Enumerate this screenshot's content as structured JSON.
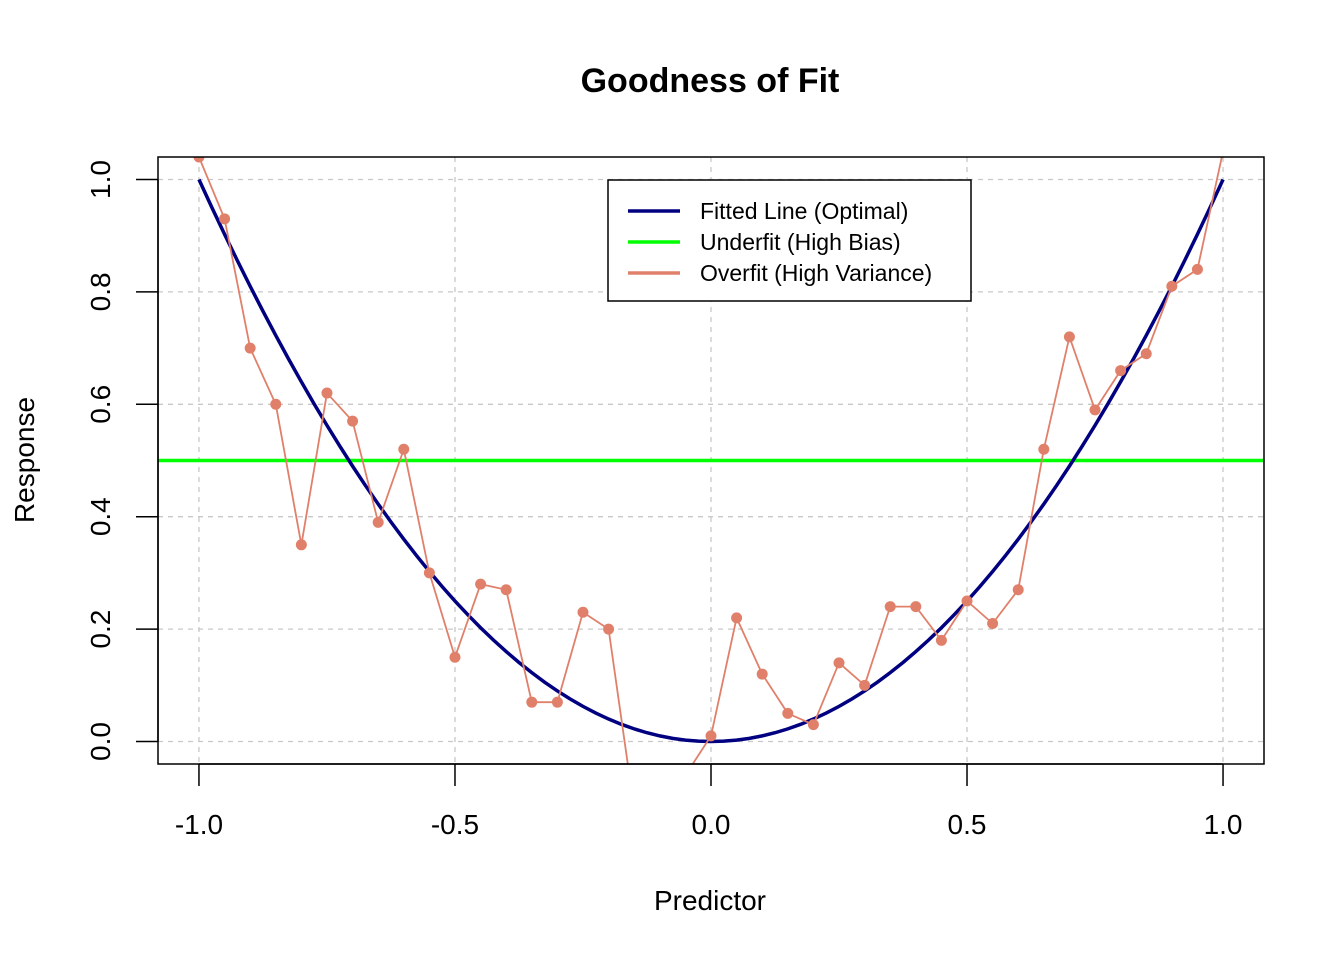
{
  "chart_data": {
    "type": "line",
    "title": "Goodness of Fit",
    "xlabel": "Predictor",
    "ylabel": "Response",
    "xlim": [
      -1.08,
      1.08
    ],
    "ylim": [
      -0.04,
      1.04
    ],
    "xticks": [
      -1.0,
      -0.5,
      0.0,
      0.5,
      1.0
    ],
    "xtick_labels": [
      "-1.0",
      "-0.5",
      "0.0",
      "0.5",
      "1.0"
    ],
    "yticks": [
      0.0,
      0.2,
      0.4,
      0.6,
      0.8,
      1.0
    ],
    "ytick_labels": [
      "0.0",
      "0.2",
      "0.4",
      "0.6",
      "0.8",
      "1.0"
    ],
    "grid": true,
    "legend_position": "top-center",
    "series": [
      {
        "name": "Fitted Line (Optimal)",
        "color": "#000080",
        "style": "line",
        "function": "x^2"
      },
      {
        "name": "Underfit (High Bias)",
        "color": "#00ff00",
        "style": "hline",
        "y_constant": 0.5
      },
      {
        "name": "Overfit (High Variance)",
        "color": "#e0806a",
        "style": "line+points",
        "x": [
          -1.0,
          -0.95,
          -0.9,
          -0.85,
          -0.8,
          -0.75,
          -0.7,
          -0.65,
          -0.6,
          -0.55,
          -0.5,
          -0.45,
          -0.4,
          -0.35,
          -0.3,
          -0.25,
          -0.2,
          -0.15,
          -0.1,
          -0.05,
          0.0,
          0.05,
          0.1,
          0.15,
          0.2,
          0.25,
          0.3,
          0.35,
          0.4,
          0.45,
          0.5,
          0.55,
          0.6,
          0.65,
          0.7,
          0.75,
          0.8,
          0.85,
          0.9,
          0.95,
          1.0
        ],
        "y": [
          1.04,
          0.93,
          0.7,
          0.6,
          0.35,
          0.62,
          0.57,
          0.39,
          0.52,
          0.3,
          0.15,
          0.28,
          0.27,
          0.07,
          0.07,
          0.23,
          0.2,
          -0.12,
          -0.15,
          -0.06,
          0.01,
          0.22,
          0.12,
          0.05,
          0.03,
          0.14,
          0.1,
          0.24,
          0.24,
          0.18,
          0.25,
          0.21,
          0.27,
          0.52,
          0.72,
          0.59,
          0.66,
          0.69,
          0.81,
          0.84,
          1.05
        ]
      }
    ]
  }
}
